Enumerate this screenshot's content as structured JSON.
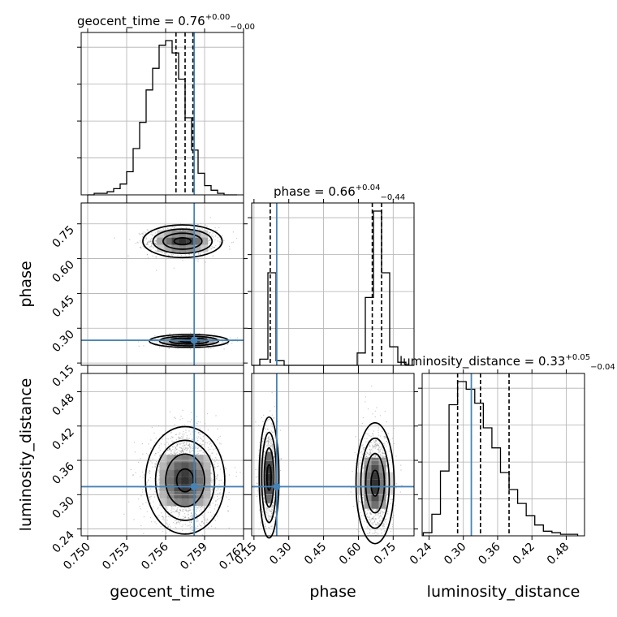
{
  "chart_data": {
    "type": "corner",
    "parameters": [
      "geocent_time",
      "phase",
      "luminosity_distance"
    ],
    "truths": {
      "geocent_time": 0.7582,
      "phase": 0.248,
      "luminosity_distance": 0.314
    },
    "titles": [
      {
        "param": "geocent_time",
        "base": "geocent_time = 0.76",
        "plus": "+0.00",
        "minus": "−0.00"
      },
      {
        "param": "phase",
        "base": "phase = 0.66",
        "plus": "+0.04",
        "minus": "−0.44"
      },
      {
        "param": "luminosity_distance",
        "base": "luminosity_distance = 0.33",
        "plus": "+0.05",
        "minus": "−0.04"
      }
    ],
    "axes": {
      "geocent_time": {
        "range": [
          0.7495,
          0.762
        ],
        "ticks": [
          0.75,
          0.753,
          0.756,
          0.759,
          0.762
        ],
        "tick_labels": [
          "0.750",
          "0.753",
          "0.756",
          "0.759",
          "0.762"
        ]
      },
      "phase": {
        "range": [
          0.14,
          0.84
        ],
        "ticks": [
          0.15,
          0.3,
          0.45,
          0.6,
          0.75
        ],
        "tick_labels": [
          "0.15",
          "0.30",
          "0.45",
          "0.60",
          "0.75"
        ]
      },
      "luminosity_distance": {
        "range": [
          0.228,
          0.512
        ],
        "ticks": [
          0.24,
          0.3,
          0.36,
          0.42,
          0.48
        ],
        "tick_labels": [
          "0.24",
          "0.30",
          "0.36",
          "0.42",
          "0.48"
        ]
      }
    },
    "quantiles": {
      "geocent_time": [
        0.7568,
        0.7575,
        0.7581
      ],
      "phase": [
        0.22,
        0.66,
        0.7
      ],
      "luminosity_distance": [
        0.29,
        0.33,
        0.38
      ]
    },
    "histograms": {
      "geocent_time": {
        "edges": [
          0.75,
          0.7505,
          0.751,
          0.7515,
          0.752,
          0.7525,
          0.753,
          0.7535,
          0.754,
          0.7545,
          0.755,
          0.7555,
          0.756,
          0.7565,
          0.757,
          0.7575,
          0.758,
          0.7585,
          0.759,
          0.7595,
          0.76,
          0.7605,
          0.761,
          0.7615
        ],
        "counts": [
          0,
          1,
          1,
          2,
          4,
          7,
          15,
          30,
          47,
          68,
          82,
          97,
          100,
          92,
          75,
          50,
          29,
          14,
          6,
          3,
          1,
          0,
          0
        ]
      },
      "phase": {
        "edges": [
          0.14,
          0.175,
          0.21,
          0.245,
          0.28,
          0.315,
          0.35,
          0.385,
          0.42,
          0.455,
          0.49,
          0.525,
          0.56,
          0.595,
          0.63,
          0.665,
          0.7,
          0.735,
          0.77,
          0.805,
          0.84
        ],
        "counts": [
          0,
          4,
          60,
          3,
          0,
          0,
          0,
          0,
          0,
          0,
          0,
          0,
          0,
          8,
          44,
          100,
          60,
          12,
          2,
          0
        ]
      },
      "luminosity_distance": {
        "edges": [
          0.23,
          0.245,
          0.26,
          0.275,
          0.29,
          0.305,
          0.32,
          0.335,
          0.35,
          0.365,
          0.38,
          0.395,
          0.41,
          0.425,
          0.44,
          0.455,
          0.47,
          0.485,
          0.5
        ],
        "counts": [
          2,
          14,
          42,
          85,
          100,
          95,
          86,
          70,
          57,
          41,
          30,
          21,
          13,
          7,
          3,
          2,
          1,
          1
        ]
      }
    },
    "pair_modes": {
      "phase_vs_geocent_time": [
        {
          "cx": 0.7573,
          "cy": 0.675,
          "sx": 0.0013,
          "sy": 0.03,
          "n": 1300
        },
        {
          "cx": 0.7578,
          "cy": 0.245,
          "sx": 0.0013,
          "sy": 0.012,
          "n": 900
        }
      ],
      "luminosity_distance_vs_geocent_time": [
        {
          "cx": 0.7575,
          "cy": 0.325,
          "sx": 0.0013,
          "sy": 0.04,
          "n": 2200
        }
      ],
      "luminosity_distance_vs_phase": [
        {
          "cx": 0.215,
          "cy": 0.33,
          "sx": 0.018,
          "sy": 0.045,
          "n": 900
        },
        {
          "cx": 0.672,
          "cy": 0.32,
          "sx": 0.035,
          "sy": 0.045,
          "n": 1300
        }
      ]
    },
    "colors": {
      "truth": "#4682b4",
      "hist": "#000000",
      "scatter": "#555555",
      "grid": "#b0b0b0"
    }
  }
}
